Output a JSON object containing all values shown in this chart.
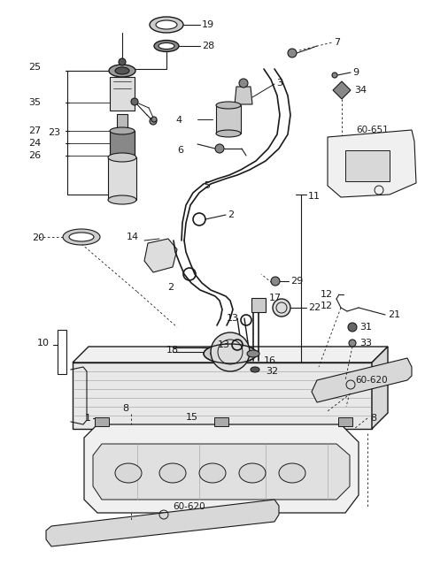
{
  "bg_color": "#ffffff",
  "line_color": "#1a1a1a",
  "figsize": [
    4.8,
    6.65
  ],
  "dpi": 100
}
